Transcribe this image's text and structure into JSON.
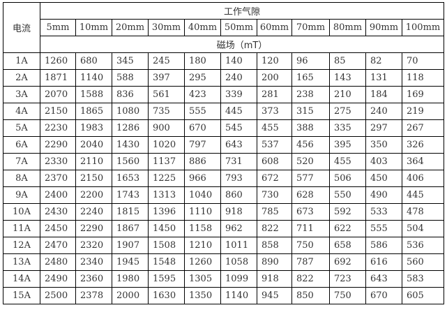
{
  "table": {
    "row_header": "电流",
    "group_header": "工作气隙",
    "unit_header": "磁场（mT）",
    "columns": [
      "5mm",
      "10mm",
      "20mm",
      "30mm",
      "40mm",
      "50mm",
      "60mm",
      "70mm",
      "80mm",
      "90mm",
      "100mm"
    ],
    "rows": [
      {
        "current": "1A",
        "values": [
          "1260",
          "680",
          "345",
          "245",
          "180",
          "140",
          "120",
          "96",
          "85",
          "82",
          "70"
        ]
      },
      {
        "current": "2A",
        "values": [
          "1871",
          "1140",
          "588",
          "397",
          "295",
          "240",
          "200",
          "165",
          "143",
          "131",
          "118"
        ]
      },
      {
        "current": "3A",
        "values": [
          "2070",
          "1588",
          "836",
          "561",
          "423",
          "339",
          "281",
          "238",
          "210",
          "184",
          "169"
        ]
      },
      {
        "current": "4A",
        "values": [
          "2150",
          "1865",
          "1080",
          "735",
          "555",
          "445",
          "373",
          "315",
          "275",
          "240",
          "219"
        ]
      },
      {
        "current": "5A",
        "values": [
          "2230",
          "1983",
          "1286",
          "900",
          "670",
          "545",
          "455",
          "388",
          "335",
          "297",
          "267"
        ]
      },
      {
        "current": "6A",
        "values": [
          "2290",
          "2040",
          "1430",
          "1020",
          "797",
          "643",
          "537",
          "456",
          "395",
          "350",
          "326"
        ]
      },
      {
        "current": "7A",
        "values": [
          "2330",
          "2110",
          "1560",
          "1137",
          "886",
          "731",
          "608",
          "520",
          "455",
          "403",
          "364"
        ]
      },
      {
        "current": "8A",
        "values": [
          "2370",
          "2150",
          "1653",
          "1225",
          "966",
          "793",
          "672",
          "577",
          "506",
          "450",
          "406"
        ]
      },
      {
        "current": "9A",
        "values": [
          "2400",
          "2200",
          "1743",
          "1313",
          "1040",
          "860",
          "730",
          "628",
          "550",
          "490",
          "445"
        ]
      },
      {
        "current": "10A",
        "values": [
          "2430",
          "2240",
          "1815",
          "1396",
          "1110",
          "918",
          "785",
          "673",
          "592",
          "533",
          "478"
        ]
      },
      {
        "current": "11A",
        "values": [
          "2450",
          "2290",
          "1867",
          "1450",
          "1158",
          "962",
          "822",
          "711",
          "622",
          "555",
          "504"
        ]
      },
      {
        "current": "12A",
        "values": [
          "2470",
          "2320",
          "1907",
          "1508",
          "1210",
          "1011",
          "858",
          "750",
          "658",
          "586",
          "536"
        ]
      },
      {
        "current": "13A",
        "values": [
          "2480",
          "2340",
          "1945",
          "1548",
          "1260",
          "1058",
          "890",
          "787",
          "692",
          "616",
          "560"
        ]
      },
      {
        "current": "14A",
        "values": [
          "2490",
          "2360",
          "1980",
          "1595",
          "1305",
          "1099",
          "918",
          "822",
          "723",
          "643",
          "583"
        ]
      },
      {
        "current": "15A",
        "values": [
          "2500",
          "2378",
          "2000",
          "1630",
          "1350",
          "1140",
          "945",
          "850",
          "750",
          "670",
          "605"
        ]
      }
    ]
  }
}
